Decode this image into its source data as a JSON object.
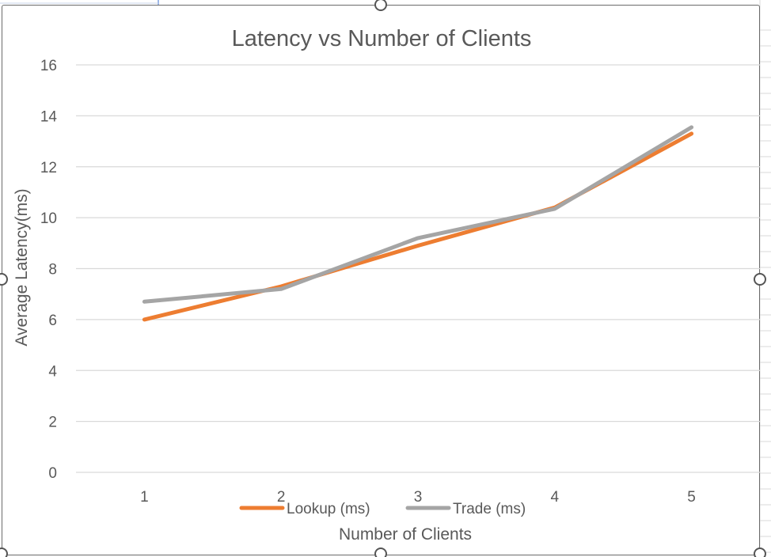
{
  "chart_data": {
    "type": "line",
    "title": "Latency vs Number of Clients",
    "xlabel": "Number of Clients",
    "ylabel": "Average Latency(ms)",
    "categories": [
      "1",
      "2",
      "3",
      "4",
      "5"
    ],
    "ylim": [
      0,
      16
    ],
    "yticks": [
      0,
      2,
      4,
      6,
      8,
      10,
      12,
      14,
      16
    ],
    "grid": true,
    "legend_position": "bottom",
    "series": [
      {
        "name": "Lookup (ms)",
        "color": "#ED7D31",
        "values": [
          6.0,
          7.3,
          8.9,
          10.4,
          13.3
        ]
      },
      {
        "name": "Trade (ms)",
        "color": "#A5A5A5",
        "values": [
          6.7,
          7.2,
          9.2,
          10.35,
          13.55
        ]
      }
    ]
  }
}
